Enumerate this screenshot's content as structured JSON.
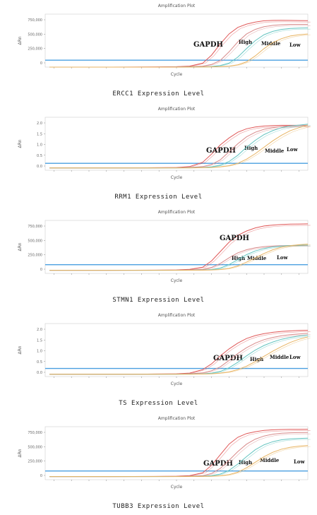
{
  "chart_data": [
    {
      "type": "line",
      "title": "Amplification Plot",
      "xlabel": "Cycle",
      "ylabel": "ΔRn",
      "caption": "ERCC1 Expression Level",
      "y_ticks": [
        "750,000",
        "500,000",
        "250,000",
        "0"
      ],
      "ylim": [
        0,
        800000
      ],
      "x": [
        1,
        5,
        10,
        15,
        20,
        25,
        30,
        33,
        36,
        38,
        40,
        42,
        44,
        46,
        48,
        50,
        52,
        54,
        56,
        58,
        60
      ],
      "xlim": [
        0,
        60
      ],
      "threshold": 105000,
      "series": [
        {
          "name": "GAPDH",
          "values": [
            0,
            0,
            -500,
            0,
            1000,
            2000,
            6000,
            15000,
            60000,
            180000,
            350000,
            500000,
            600000,
            650000,
            680000,
            700000,
            705000,
            706000,
            705000,
            703000,
            702000
          ]
        },
        {
          "name": "High",
          "values": [
            0,
            0,
            0,
            0,
            500,
            1000,
            2000,
            5000,
            15000,
            40000,
            100000,
            230000,
            380000,
            500000,
            570000,
            610000,
            630000,
            640000,
            645000,
            645000,
            645000
          ]
        },
        {
          "name": "Middle",
          "values": [
            0,
            0,
            0,
            0,
            0,
            500,
            1000,
            2000,
            4000,
            10000,
            25000,
            60000,
            150000,
            280000,
            400000,
            490000,
            540000,
            570000,
            585000,
            590000,
            592000
          ]
        },
        {
          "name": "Low",
          "values": [
            0,
            0,
            0,
            0,
            0,
            0,
            500,
            1000,
            2000,
            4000,
            8000,
            15000,
            35000,
            80000,
            170000,
            280000,
            370000,
            430000,
            470000,
            490000,
            500000
          ]
        }
      ]
    },
    {
      "type": "line",
      "title": "Amplification Plot",
      "xlabel": "Cycle",
      "ylabel": "ΔRn",
      "caption": "RRM1 Expression Level",
      "y_ticks": [
        "2.0",
        "1.5",
        "1.0",
        "0.5",
        "0.0"
      ],
      "ylim": [
        -0.1,
        2.2
      ],
      "x": [
        1,
        5,
        10,
        15,
        20,
        25,
        30,
        33,
        36,
        38,
        40,
        42,
        44,
        46,
        48,
        50,
        52,
        54,
        56,
        58,
        60
      ],
      "xlim": [
        0,
        60
      ],
      "threshold": 0.2,
      "series": [
        {
          "name": "GAPDH",
          "values": [
            0,
            0,
            0,
            0,
            0,
            0.01,
            0.02,
            0.06,
            0.25,
            0.6,
            1.0,
            1.3,
            1.55,
            1.7,
            1.78,
            1.82,
            1.84,
            1.85,
            1.85,
            1.85,
            1.85
          ]
        },
        {
          "name": "High",
          "values": [
            0,
            0,
            0,
            0,
            0,
            0,
            0.01,
            0.02,
            0.06,
            0.15,
            0.35,
            0.7,
            1.05,
            1.35,
            1.55,
            1.68,
            1.75,
            1.8,
            1.83,
            1.84,
            1.85
          ]
        },
        {
          "name": "Middle",
          "values": [
            0,
            0,
            0,
            0,
            0,
            0,
            0,
            0.01,
            0.02,
            0.05,
            0.12,
            0.28,
            0.55,
            0.9,
            1.2,
            1.45,
            1.62,
            1.75,
            1.82,
            1.86,
            1.9
          ]
        },
        {
          "name": "Low",
          "values": [
            0,
            0,
            0,
            0,
            0,
            0,
            0,
            0,
            0.01,
            0.02,
            0.05,
            0.1,
            0.2,
            0.38,
            0.62,
            0.9,
            1.18,
            1.42,
            1.62,
            1.75,
            1.85
          ]
        }
      ]
    },
    {
      "type": "line",
      "title": "Amplification Plot",
      "xlabel": "Cycle",
      "ylabel": "ΔRn",
      "caption": "STMN1 Expression Level",
      "y_ticks": [
        "750,000",
        "500,000",
        "250,000",
        "0"
      ],
      "ylim": [
        -50000,
        800000
      ],
      "x": [
        1,
        5,
        10,
        15,
        20,
        25,
        30,
        33,
        36,
        38,
        40,
        42,
        44,
        46,
        48,
        50,
        52,
        54,
        56,
        58,
        60
      ],
      "xlim": [
        0,
        60
      ],
      "threshold": 90000,
      "series": [
        {
          "name": "GAPDH",
          "values": [
            0,
            0,
            0,
            0,
            1000,
            2000,
            6000,
            15000,
            50000,
            150000,
            300000,
            450000,
            560000,
            630000,
            680000,
            710000,
            725000,
            735000,
            740000,
            742000,
            744000
          ]
        },
        {
          "name": "High",
          "values": [
            0,
            0,
            0,
            0,
            0,
            1000,
            2000,
            5000,
            15000,
            45000,
            110000,
            200000,
            280000,
            330000,
            360000,
            380000,
            390000,
            395000,
            397000,
            398000,
            399000
          ]
        },
        {
          "name": "Middle",
          "values": [
            0,
            0,
            0,
            0,
            0,
            0,
            1000,
            2000,
            5000,
            12000,
            35000,
            90000,
            170000,
            250000,
            310000,
            350000,
            375000,
            390000,
            398000,
            402000,
            405000
          ]
        },
        {
          "name": "Low",
          "values": [
            0,
            0,
            0,
            0,
            0,
            0,
            0,
            1000,
            2000,
            5000,
            12000,
            30000,
            70000,
            130000,
            200000,
            270000,
            330000,
            370000,
            395000,
            410000,
            420000
          ]
        }
      ]
    },
    {
      "type": "line",
      "title": "Amplification Plot",
      "xlabel": "Cycle",
      "ylabel": "ΔRn",
      "caption": "TS Expression Level",
      "y_ticks": [
        "2.0",
        "1.5",
        "1.0",
        "0.5",
        "0.0"
      ],
      "ylim": [
        -0.1,
        2.2
      ],
      "x": [
        1,
        5,
        10,
        15,
        20,
        25,
        30,
        33,
        36,
        38,
        40,
        42,
        44,
        46,
        48,
        50,
        52,
        54,
        56,
        58,
        60
      ],
      "xlim": [
        0,
        60
      ],
      "threshold": 0.25,
      "series": [
        {
          "name": "GAPDH",
          "values": [
            0,
            0,
            0,
            0,
            0,
            0.01,
            0.02,
            0.05,
            0.2,
            0.45,
            0.8,
            1.1,
            1.35,
            1.55,
            1.68,
            1.76,
            1.82,
            1.86,
            1.88,
            1.9,
            1.91
          ]
        },
        {
          "name": "High",
          "values": [
            0,
            0,
            0,
            0,
            0,
            0,
            0.01,
            0.02,
            0.06,
            0.15,
            0.32,
            0.6,
            0.9,
            1.15,
            1.35,
            1.5,
            1.6,
            1.67,
            1.72,
            1.75,
            1.77
          ]
        },
        {
          "name": "Middle",
          "values": [
            0,
            0,
            0,
            0,
            0,
            0,
            0,
            0.01,
            0.02,
            0.05,
            0.12,
            0.28,
            0.52,
            0.8,
            1.05,
            1.25,
            1.4,
            1.52,
            1.6,
            1.66,
            1.7
          ]
        },
        {
          "name": "Low",
          "values": [
            0,
            0,
            0,
            0,
            0,
            0,
            0,
            0,
            0.01,
            0.02,
            0.05,
            0.1,
            0.2,
            0.35,
            0.55,
            0.78,
            1.0,
            1.2,
            1.38,
            1.52,
            1.62
          ]
        }
      ]
    },
    {
      "type": "line",
      "title": "Amplification Plot",
      "xlabel": "Cycle",
      "ylabel": "ΔRn",
      "caption": "TUBB3 Expression Level",
      "y_ticks": [
        "750,000",
        "500,000",
        "250,000",
        "0"
      ],
      "ylim": [
        -50000,
        800000
      ],
      "x": [
        1,
        5,
        10,
        15,
        20,
        25,
        30,
        33,
        36,
        38,
        40,
        42,
        44,
        46,
        48,
        50,
        52,
        54,
        56,
        58,
        60
      ],
      "xlim": [
        0,
        60
      ],
      "threshold": 90000,
      "series": [
        {
          "name": "GAPDH",
          "values": [
            0,
            0,
            0,
            0,
            1000,
            2000,
            6000,
            15000,
            60000,
            180000,
            350000,
            520000,
            630000,
            690000,
            720000,
            740000,
            750000,
            755000,
            757000,
            758000,
            759000
          ]
        },
        {
          "name": "High",
          "values": [
            0,
            0,
            0,
            0,
            0,
            1000,
            2000,
            5000,
            15000,
            50000,
            130000,
            260000,
            400000,
            520000,
            600000,
            650000,
            680000,
            695000,
            702000,
            705000,
            706000
          ]
        },
        {
          "name": "Middle",
          "values": [
            0,
            0,
            0,
            0,
            0,
            0,
            1000,
            2000,
            5000,
            15000,
            40000,
            100000,
            200000,
            320000,
            430000,
            510000,
            560000,
            590000,
            605000,
            612000,
            615000
          ]
        },
        {
          "name": "Low",
          "values": [
            0,
            0,
            0,
            0,
            0,
            0,
            0,
            1000,
            2000,
            5000,
            12000,
            30000,
            70000,
            140000,
            230000,
            320000,
            390000,
            440000,
            470000,
            488000,
            498000
          ]
        }
      ]
    }
  ],
  "colors": {
    "GAPDH": "#e05858",
    "High": "#d88a8a",
    "Middle": "#63c4c0",
    "Low": "#e8b463",
    "threshold": "#4a9fe0",
    "axis": "#888888"
  }
}
